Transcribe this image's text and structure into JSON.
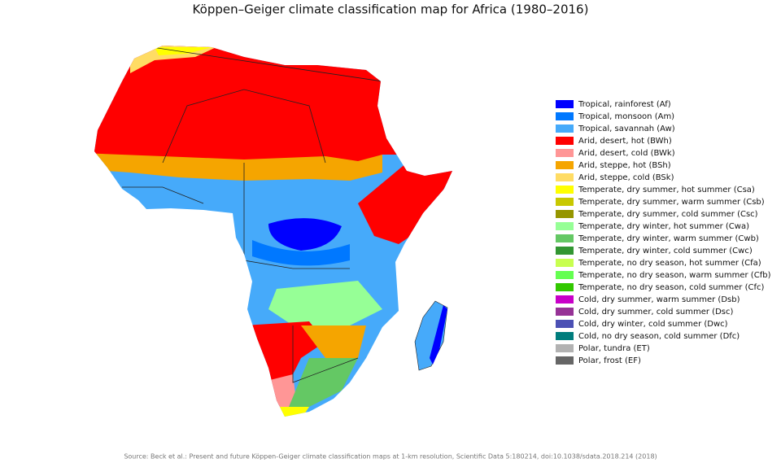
{
  "title": "Köppen–Geiger climate classification map for Africa (1980–2016)",
  "legend": [
    {
      "name": "Tropical, rainforest (Af)",
      "color": "#0000ff"
    },
    {
      "name": "Tropical, monsoon (Am)",
      "color": "#0078ff"
    },
    {
      "name": "Tropical, savannah (Aw)",
      "color": "#46aafa"
    },
    {
      "name": "Arid, desert, hot (BWh)",
      "color": "#ff0000"
    },
    {
      "name": "Arid, desert, cold (BWk)",
      "color": "#ff9696"
    },
    {
      "name": "Arid, steppe, hot (BSh)",
      "color": "#f5a500"
    },
    {
      "name": "Arid, steppe, cold (BSk)",
      "color": "#ffdc64"
    },
    {
      "name": "Temperate, dry summer, hot summer (Csa)",
      "color": "#ffff00"
    },
    {
      "name": "Temperate, dry summer, warm summer (Csb)",
      "color": "#c8c800"
    },
    {
      "name": "Temperate, dry summer, cold summer (Csc)",
      "color": "#969600"
    },
    {
      "name": "Temperate, dry winter, hot summer (Cwa)",
      "color": "#96ff96"
    },
    {
      "name": "Temperate, dry winter, warm summer (Cwb)",
      "color": "#64c864"
    },
    {
      "name": "Temperate, dry winter, cold summer (Cwc)",
      "color": "#329632"
    },
    {
      "name": "Temperate, no dry season, hot summer (Cfa)",
      "color": "#c8ff50"
    },
    {
      "name": "Temperate, no dry season, warm summer (Cfb)",
      "color": "#64ff50"
    },
    {
      "name": "Temperate, no dry season, cold summer (Cfc)",
      "color": "#32c800"
    },
    {
      "name": "Cold, dry summer, warm summer (Dsb)",
      "color": "#c800c8"
    },
    {
      "name": "Cold, dry summer, cold summer (Dsc)",
      "color": "#963296"
    },
    {
      "name": "Cold, dry winter, cold summer (Dwc)",
      "color": "#4b50b4"
    },
    {
      "name": "Cold, no dry season, cold summer (Dfc)",
      "color": "#007d7d"
    },
    {
      "name": "Polar, tundra (ET)",
      "color": "#b2b2b2"
    },
    {
      "name": "Polar, frost (EF)",
      "color": "#666666"
    }
  ],
  "source": "Source: Beck et al.: Present and future Köppen-Geiger climate classification maps at 1-km resolution, Scientific Data 5:180214, doi:10.1038/sdata.2018.214 (2018)"
}
